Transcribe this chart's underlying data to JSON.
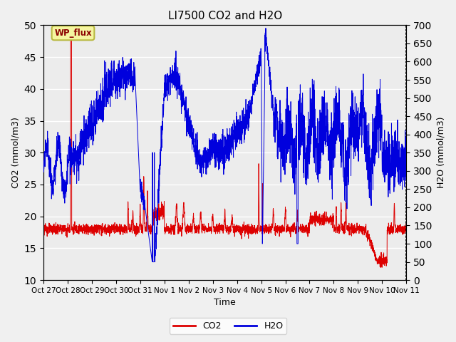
{
  "title": "LI7500 CO2 and H2O",
  "xlabel": "Time",
  "ylabel_left": "CO2 (mmol/m3)",
  "ylabel_right": "H2O (mmol/m3)",
  "co2_ylim": [
    10,
    50
  ],
  "h2o_ylim": [
    0,
    700
  ],
  "xtick_labels": [
    "Oct 27",
    "Oct 28",
    "Oct 29",
    "Oct 30",
    "Oct 31",
    "Nov 1",
    "Nov 2",
    "Nov 3",
    "Nov 4",
    "Nov 5",
    "Nov 6",
    "Nov 7",
    "Nov 8",
    "Nov 9",
    "Nov 10",
    "Nov 11"
  ],
  "annotation_text": "WP_flux",
  "co2_color": "#dd0000",
  "h2o_color": "#0000dd",
  "plot_bg_color": "#ececec",
  "grid_color": "#ffffff",
  "figsize": [
    6.4,
    4.8
  ],
  "dpi": 100
}
